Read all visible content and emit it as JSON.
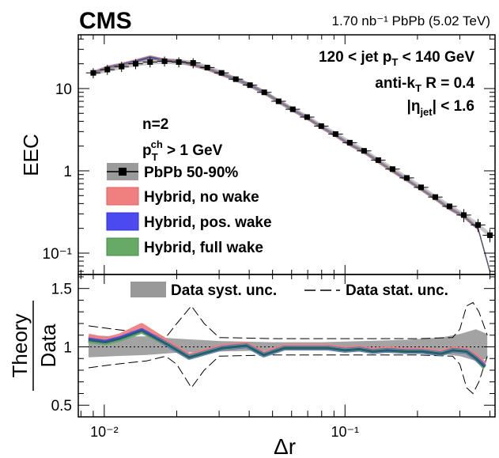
{
  "chart_data": [
    {
      "type": "line",
      "panel": "upper",
      "experiment": "CMS",
      "luminosity_label": "1.70 nb⁻¹ PbPb (5.02 TeV)",
      "ylabel": "EEC",
      "xscale": "log",
      "yscale": "log",
      "xlim": [
        0.0078,
        0.42
      ],
      "ylim": [
        0.055,
        45
      ],
      "x_tick_labels": [
        "10⁻²",
        "10⁻¹"
      ],
      "y_tick_labels": [
        "10⁻¹",
        "1",
        "10"
      ],
      "annotations": {
        "jet_pt": "120 < jet pT < 140 GeV",
        "algo": "anti-kT R = 0.4",
        "eta": "|ηjet| < 1.6",
        "n": "n=2",
        "track_pt": "pTch > 1 GeV"
      },
      "legend": [
        {
          "label": "PbPb 50-90%",
          "color": "#000000",
          "marker": "square"
        },
        {
          "label": "Hybrid, no wake",
          "color": "#f08080"
        },
        {
          "label": "Hybrid, pos. wake",
          "color": "#4a4af0"
        },
        {
          "label": "Hybrid, full wake",
          "color": "#66aa66"
        }
      ],
      "x": [
        0.009,
        0.0103,
        0.0118,
        0.0135,
        0.0155,
        0.0178,
        0.0204,
        0.0234,
        0.0268,
        0.0307,
        0.0352,
        0.0403,
        0.0462,
        0.053,
        0.0607,
        0.0696,
        0.0797,
        0.0914,
        0.1047,
        0.12,
        0.1375,
        0.1576,
        0.1806,
        0.207,
        0.2372,
        0.2718,
        0.3115,
        0.357,
        0.4
      ],
      "series": [
        {
          "name": "PbPb 50-90%",
          "values": [
            15.5,
            17.0,
            18.5,
            20.0,
            21.0,
            21.5,
            21.0,
            20.5,
            18.0,
            15.5,
            13.0,
            11.0,
            9.0,
            7.0,
            5.6,
            4.5,
            3.5,
            2.8,
            2.2,
            1.75,
            1.35,
            1.05,
            0.82,
            0.63,
            0.48,
            0.37,
            0.29,
            0.22,
            0.165
          ]
        },
        {
          "name": "Hybrid",
          "values": [
            15.5,
            18.0,
            19.5,
            21.5,
            24.0,
            22.0,
            21.5,
            19.5,
            17.5,
            15.0,
            13.0,
            11.0,
            9.0,
            7.0,
            5.5,
            4.4,
            3.4,
            2.7,
            2.1,
            1.7,
            1.3,
            1.0,
            0.78,
            0.6,
            0.46,
            0.35,
            0.28,
            0.2,
            0.06
          ]
        }
      ]
    },
    {
      "type": "line",
      "panel": "lower",
      "ylabel": "Theory/Data",
      "ylabel_top": "Theory",
      "ylabel_bottom": "Data",
      "xlabel": "Δr",
      "xscale": "log",
      "xlim": [
        0.0078,
        0.42
      ],
      "ylim": [
        0.4,
        1.62
      ],
      "y_tick_labels": [
        "0.5",
        "1",
        "1.5"
      ],
      "legend": [
        {
          "label": "Data syst. unc.",
          "style": "band",
          "color": "#999999"
        },
        {
          "label": "Data stat. unc.",
          "style": "dashed",
          "color": "#000000"
        }
      ],
      "x": [
        0.0086,
        0.0101,
        0.0116,
        0.0143,
        0.0183,
        0.0225,
        0.031,
        0.039,
        0.046,
        0.056,
        0.07,
        0.085,
        0.1,
        0.115,
        0.13,
        0.15,
        0.18,
        0.21,
        0.25,
        0.28,
        0.32,
        0.35,
        0.38
      ],
      "series": [
        {
          "name": "Hybrid, no wake",
          "color": "#f08080",
          "values": [
            1.09,
            1.06,
            1.09,
            1.18,
            1.04,
            0.92,
            1.0,
            1.02,
            0.94,
            1.0,
            1.0,
            1.0,
            0.98,
            0.99,
            0.97,
            0.98,
            0.97,
            0.97,
            0.95,
            0.98,
            0.97,
            0.92,
            0.85
          ]
        },
        {
          "name": "Hybrid, pos. wake",
          "color": "#4a4af0",
          "values": [
            1.06,
            1.04,
            1.07,
            1.14,
            1.02,
            0.91,
            0.99,
            1.01,
            0.93,
            0.99,
            0.99,
            0.99,
            0.97,
            0.98,
            0.96,
            0.97,
            0.96,
            0.96,
            0.94,
            0.97,
            0.96,
            0.9,
            0.83
          ]
        },
        {
          "name": "Hybrid, full wake",
          "color": "#66aa66",
          "values": [
            1.05,
            1.03,
            1.06,
            1.13,
            1.02,
            0.91,
            0.99,
            1.01,
            0.93,
            0.99,
            0.99,
            0.99,
            0.97,
            0.98,
            0.96,
            0.97,
            0.96,
            0.96,
            0.94,
            0.97,
            0.96,
            0.9,
            0.82
          ]
        }
      ],
      "syst_band": {
        "x": [
          0.0086,
          0.011,
          0.015,
          0.02,
          0.03,
          0.05,
          0.08,
          0.12,
          0.18,
          0.25,
          0.3,
          0.35,
          0.39
        ],
        "upper": [
          1.1,
          1.09,
          1.09,
          1.07,
          1.05,
          1.04,
          1.04,
          1.05,
          1.06,
          1.08,
          1.11,
          1.15,
          1.11
        ],
        "lower": [
          0.91,
          0.92,
          0.93,
          0.95,
          0.96,
          0.97,
          0.97,
          0.96,
          0.95,
          0.94,
          0.92,
          0.88,
          0.9
        ]
      },
      "stat_band": {
        "x": [
          0.0086,
          0.011,
          0.015,
          0.018,
          0.02,
          0.023,
          0.026,
          0.03,
          0.05,
          0.1,
          0.2,
          0.28,
          0.3,
          0.32,
          0.34,
          0.36,
          0.39
        ],
        "upper": [
          1.18,
          1.15,
          1.12,
          1.08,
          1.2,
          1.35,
          1.2,
          1.08,
          1.07,
          1.07,
          1.07,
          1.08,
          1.15,
          1.35,
          1.38,
          1.3,
          1.1
        ],
        "lower": [
          0.82,
          0.85,
          0.88,
          0.92,
          0.85,
          0.65,
          0.8,
          0.92,
          0.93,
          0.93,
          0.93,
          0.92,
          0.85,
          0.65,
          0.6,
          0.7,
          0.92
        ]
      },
      "reference_line": 1
    }
  ]
}
